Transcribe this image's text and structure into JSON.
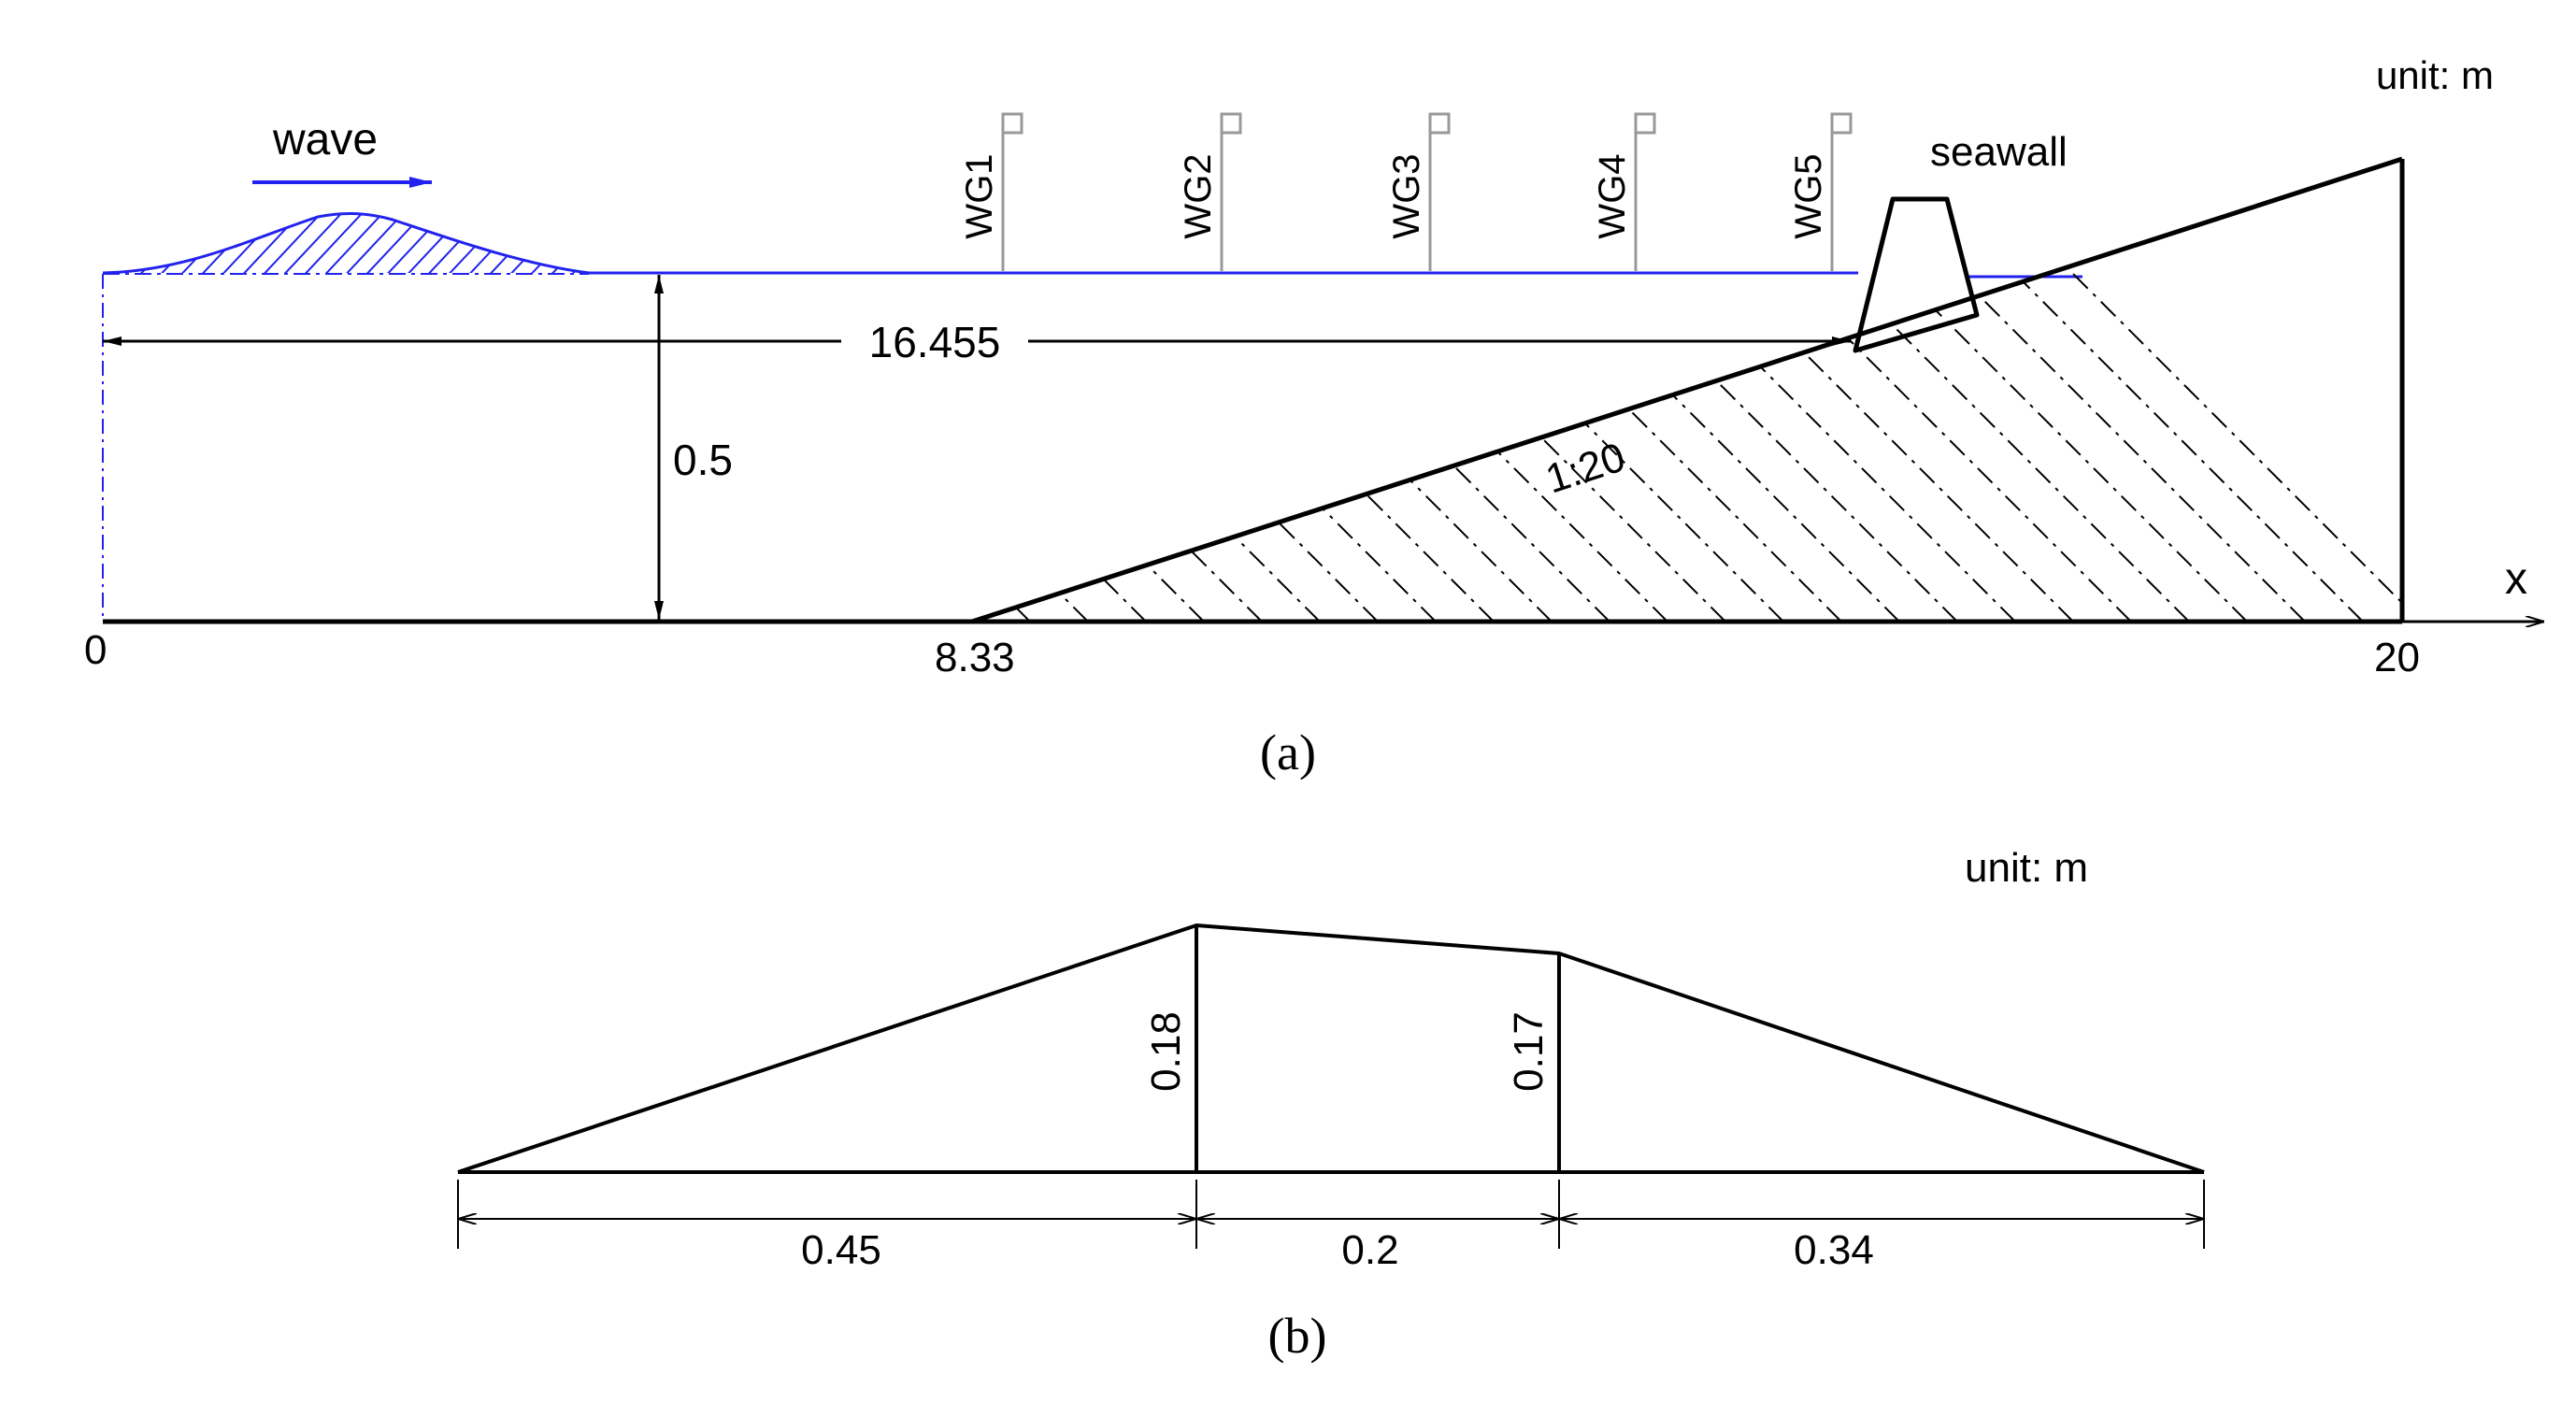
{
  "colors": {
    "water": "#2222ee",
    "line": "#000000",
    "gauge": "#999999"
  },
  "panel_a": {
    "unit_label": "unit: m",
    "wave_label": "wave",
    "seawall_label": "seawall",
    "gauges": [
      "WG1",
      "WG2",
      "WG3",
      "WG4",
      "WG5"
    ],
    "dimension_length": "16.455",
    "depth": "0.5",
    "slope": "1:20",
    "x_ticks": [
      "0",
      "8.33",
      "20"
    ],
    "axis_label": "x",
    "caption": "(a)"
  },
  "panel_b": {
    "unit_label": "unit: m",
    "left_height": "0.18",
    "right_height": "0.17",
    "widths": [
      "0.45",
      "0.2",
      "0.34"
    ],
    "caption": "(b)"
  }
}
